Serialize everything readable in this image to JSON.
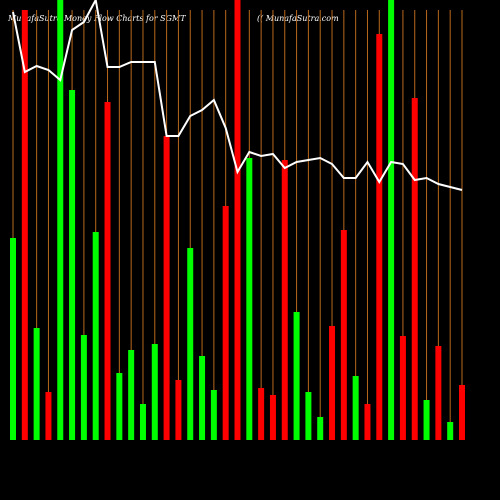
{
  "chart_data": {
    "type": "bar-line",
    "title": "MunafaSutra  Money Flow  Charts for SGMT",
    "subtitle": "(( MunafaSutra.com",
    "categories": [
      null,
      null,
      null,
      null,
      null,
      null,
      null,
      null,
      null,
      null,
      null,
      null,
      null,
      null,
      null,
      null,
      null,
      null,
      null,
      null,
      null,
      null,
      null,
      null,
      null,
      null,
      null,
      null,
      null,
      null,
      null,
      null,
      null,
      null,
      null,
      null,
      null,
      null,
      null
    ],
    "ylim": [
      0,
      440
    ],
    "guide_color": "#b8681c",
    "series": [
      {
        "type": "bar",
        "values": [
          202,
          430,
          112,
          48,
          440,
          350,
          105,
          208,
          338,
          67,
          90,
          36,
          96,
          304,
          60,
          192,
          84,
          50,
          234,
          440,
          282,
          52,
          45,
          280,
          128,
          48,
          23,
          114,
          210,
          64,
          36,
          406,
          440,
          104,
          342,
          40,
          94,
          18,
          55
        ],
        "colors": [
          "#00ff00",
          "#ff0000",
          "#00ff00",
          "#ff0000",
          "#00ff00",
          "#00ff00",
          "#00ff00",
          "#00ff00",
          "#ff0000",
          "#00ff00",
          "#00ff00",
          "#00ff00",
          "#00ff00",
          "#ff0000",
          "#ff0000",
          "#00ff00",
          "#00ff00",
          "#00ff00",
          "#ff0000",
          "#ff0000",
          "#00ff00",
          "#ff0000",
          "#ff0000",
          "#ff0000",
          "#00ff00",
          "#00ff00",
          "#00ff00",
          "#ff0000",
          "#ff0000",
          "#00ff00",
          "#ff0000",
          "#ff0000",
          "#00ff00",
          "#ff0000",
          "#ff0000",
          "#00ff00",
          "#ff0000",
          "#00ff00",
          "#ff0000"
        ]
      },
      {
        "type": "line",
        "color": "#ffffff",
        "values": [
          428,
          368,
          374,
          370,
          360,
          410,
          418,
          440,
          373,
          373,
          378,
          378,
          378,
          304,
          304,
          324,
          330,
          340,
          312,
          268,
          288,
          284,
          286,
          272,
          278,
          280,
          282,
          276,
          262,
          262,
          278,
          258,
          278,
          276,
          260,
          262,
          256,
          253,
          250
        ]
      }
    ]
  }
}
